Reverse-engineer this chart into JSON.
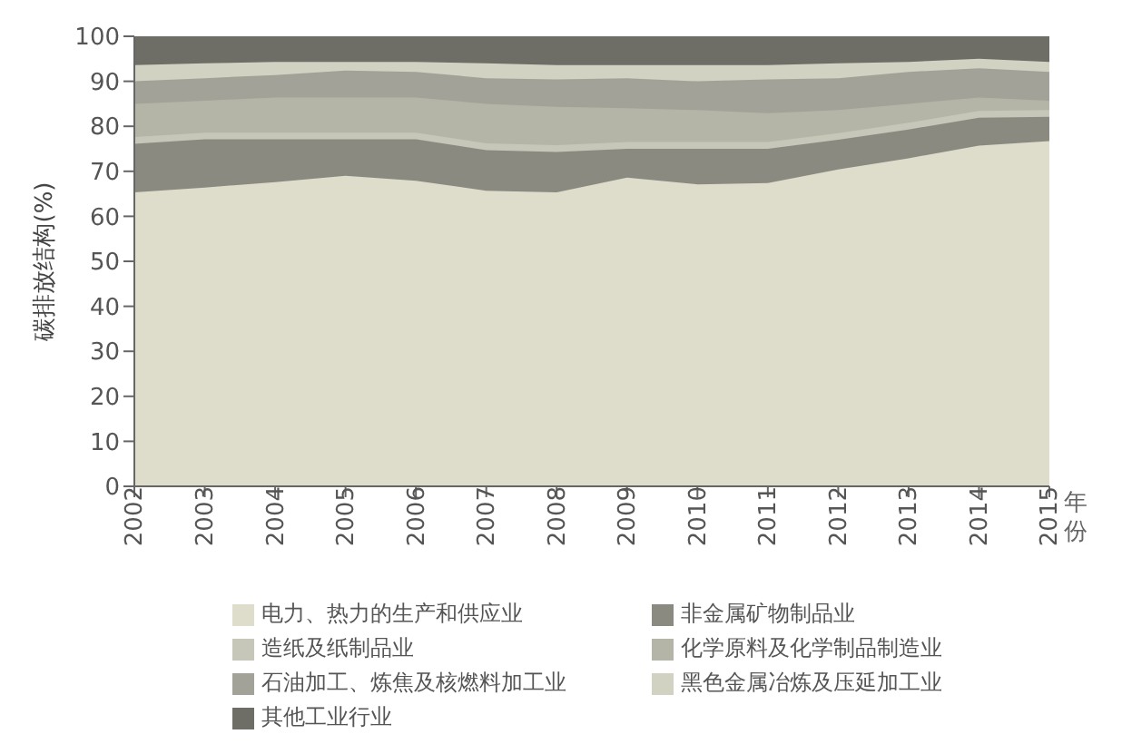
{
  "chart_data": {
    "type": "area",
    "stacked": true,
    "ylabel": "碳排放结构(%)",
    "xlabel": "年份",
    "categories": [
      "2002",
      "2003",
      "2004",
      "2005",
      "2006",
      "2007",
      "2008",
      "2009",
      "2010",
      "2011",
      "2012",
      "2013",
      "2014",
      "2015"
    ],
    "ylim": [
      0,
      100
    ],
    "yticks": [
      0,
      10,
      20,
      30,
      40,
      50,
      60,
      70,
      80,
      90,
      100
    ],
    "grid": false,
    "legend": "bottom",
    "series": [
      {
        "name": "电力、热力的生产和供应业",
        "color": "#dedccb",
        "values": [
          65.3,
          66.4,
          67.6,
          69,
          67.9,
          65.7,
          65.3,
          68.6,
          67.1,
          67.4,
          70.4,
          72.9,
          75.7,
          76.7
        ]
      },
      {
        "name": "非金属矿物制品业",
        "color": "#8a8a80",
        "values": [
          10.8,
          10.7,
          9.5,
          8.1,
          9.2,
          9,
          9,
          6.4,
          7.9,
          7.6,
          6.6,
          6.4,
          6.2,
          5.4
        ]
      },
      {
        "name": "造纸及纸制品业",
        "color": "#c6c6b9",
        "values": [
          1.5,
          1.5,
          1.5,
          1.5,
          1.5,
          1.5,
          1.5,
          1.5,
          1.5,
          1.5,
          1.5,
          1.5,
          1.5,
          1.5
        ]
      },
      {
        "name": "化学原料及化学制品制造业",
        "color": "#b4b4a7",
        "values": [
          7.4,
          7.1,
          7.8,
          7.8,
          7.8,
          8.8,
          8.5,
          7.5,
          7.1,
          6.4,
          5.1,
          4.2,
          3,
          2.1
        ]
      },
      {
        "name": "石油加工、炼焦及核燃料加工业",
        "color": "#a2a298",
        "values": [
          5,
          5,
          5,
          6,
          5.7,
          5.7,
          6.1,
          6.7,
          6.4,
          7.5,
          7.1,
          7.1,
          6.5,
          6.4
        ]
      },
      {
        "name": "黑色金属冶炼及压延加工业",
        "color": "#d2d2c2",
        "values": [
          3.6,
          3.3,
          2.9,
          1.9,
          2.2,
          3.3,
          3.2,
          2.9,
          3.6,
          3.2,
          3.3,
          2.2,
          2.1,
          2.2
        ]
      },
      {
        "name": "其他工业行业",
        "color": "#6e6e66",
        "values": [
          6.4,
          6,
          5.7,
          5.7,
          5.7,
          6,
          6.4,
          6.4,
          6.4,
          6.4,
          6,
          5.7,
          5,
          5.7
        ]
      }
    ]
  }
}
